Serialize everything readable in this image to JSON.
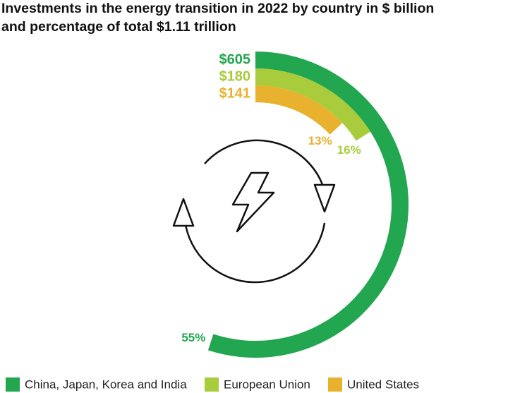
{
  "chart_data": {
    "type": "radial-bar",
    "title": [
      "Investments in the energy transition in 2022 by country in $ billion",
      "and percentage of total $1.11 trillion"
    ],
    "categories": [
      "China, Japan, Korea and India",
      "European Union",
      "United States"
    ],
    "values": [
      605,
      180,
      141
    ],
    "value_labels": [
      "$605",
      "$180",
      "$141"
    ],
    "percentages": [
      55,
      16,
      13
    ],
    "percentage_labels": [
      "55%",
      "16%",
      "13%"
    ],
    "colors": [
      "#22a650",
      "#a8cc3c",
      "#e8b22e"
    ]
  }
}
